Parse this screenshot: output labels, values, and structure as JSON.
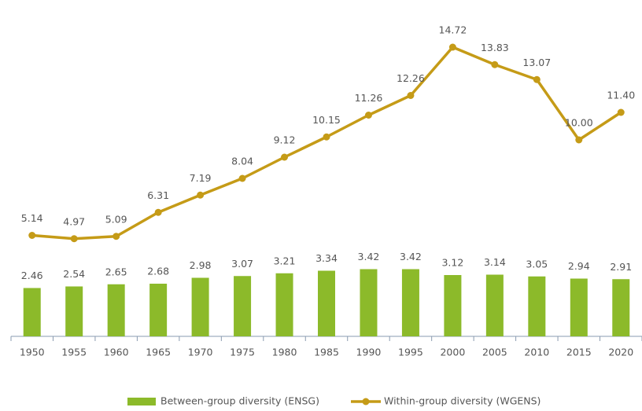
{
  "chart_data": {
    "type": "bar",
    "categories": [
      "1950",
      "1955",
      "1960",
      "1965",
      "1970",
      "1975",
      "1980",
      "1985",
      "1990",
      "1995",
      "2000",
      "2005",
      "2010",
      "2015",
      "2020"
    ],
    "series": [
      {
        "name": "Between-group diversity (ENSG)",
        "type": "bar",
        "color": "#8cba2a",
        "values": [
          2.46,
          2.54,
          2.65,
          2.68,
          2.98,
          3.07,
          3.21,
          3.34,
          3.42,
          3.42,
          3.12,
          3.14,
          3.05,
          2.94,
          2.91
        ]
      },
      {
        "name": "Within-group diversity (WGENS)",
        "type": "line",
        "color": "#c59b17",
        "values": [
          5.14,
          4.97,
          5.09,
          6.31,
          7.19,
          8.04,
          9.12,
          10.15,
          11.26,
          12.26,
          14.72,
          13.83,
          13.07,
          10.0,
          11.4
        ],
        "value_labels": [
          "5.14",
          "4.97",
          "5.09",
          "6.31",
          "7.19",
          "8.04",
          "9.12",
          "10.15",
          "11.26",
          "12.26",
          "14.72",
          "13.83",
          "13.07",
          "10.00",
          "11.40"
        ]
      }
    ],
    "ylim": [
      0,
      16
    ],
    "legend": "bottom"
  }
}
